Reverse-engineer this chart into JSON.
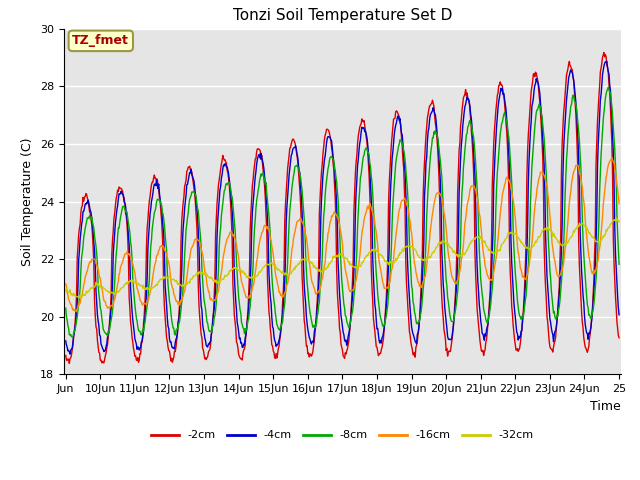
{
  "title": "Tonzi Soil Temperature Set D",
  "xlabel": "Time",
  "ylabel": "Soil Temperature (C)",
  "ylim": [
    18,
    30
  ],
  "plot_bg": "#e5e5e5",
  "fig_bg": "#ffffff",
  "legend_labels": [
    "-2cm",
    "-4cm",
    "-8cm",
    "-16cm",
    "-32cm"
  ],
  "legend_colors": [
    "#dd0000",
    "#0000cc",
    "#00aa00",
    "#ff8800",
    "#cccc00"
  ],
  "annotation_text": "TZ_fmet",
  "annotation_bg": "#ffffcc",
  "annotation_fg": "#aa0000",
  "annotation_edge": "#999944",
  "x_tick_labels": [
    "Jun",
    "10Jun",
    "11Jun",
    "12Jun",
    "13Jun",
    "14Jun",
    "15Jun",
    "16Jun",
    "17Jun",
    "18Jun",
    "19Jun",
    "20Jun",
    "21Jun",
    "22Jun",
    "23Jun",
    "24Jun",
    "25"
  ],
  "yticks": [
    18,
    20,
    22,
    24,
    26,
    28,
    30
  ],
  "title_fontsize": 11,
  "label_fontsize": 9,
  "tick_fontsize": 8,
  "legend_fontsize": 8,
  "linewidth": 1.0
}
